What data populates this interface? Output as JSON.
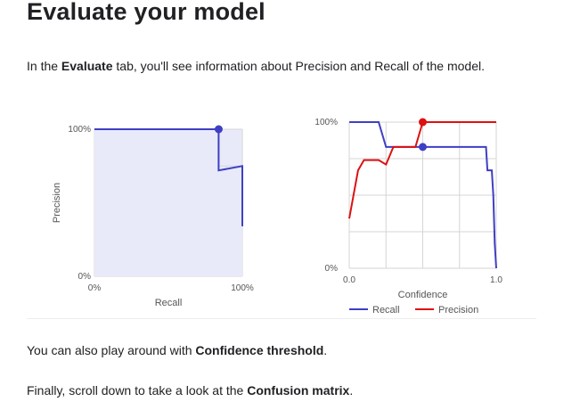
{
  "doc": {
    "title": "Evaluate your model",
    "intro": {
      "before": "In the ",
      "bold": "Evaluate",
      "after": " tab, you'll see information about Precision and Recall of the model."
    },
    "confidence_para": {
      "before": "You can also play around with ",
      "bold": "Confidence threshold",
      "after": "."
    },
    "confusion_para": {
      "before": "Finally, scroll down to take a look at the ",
      "bold": "Confusion matrix",
      "after": "."
    }
  },
  "colors": {
    "recall": "#3f3fc4",
    "precision": "#dd1111",
    "pr_fill": "#e8eaf9",
    "grid": "#d5d5d5"
  },
  "chart_data": [
    {
      "type": "area",
      "xlabel": "Recall",
      "ylabel": "Precision",
      "xlim": [
        0,
        100
      ],
      "ylim": [
        0,
        100
      ],
      "grid": true,
      "x_ticks": [
        "0%",
        "100%"
      ],
      "y_ticks": [
        "0%",
        "100%"
      ],
      "series": [
        {
          "x": [
            0,
            84,
            84,
            100,
            100
          ],
          "y": [
            100,
            100,
            72,
            75,
            34
          ]
        }
      ],
      "highlight": {
        "x": 84,
        "y": 100
      }
    },
    {
      "type": "line",
      "xlabel": "Confidence",
      "xlim": [
        0,
        1
      ],
      "ylim": [
        0,
        100
      ],
      "grid": true,
      "x_ticks": [
        "0.0",
        "1.0"
      ],
      "y_ticks": [
        "0%",
        "100%"
      ],
      "legend": "bottom",
      "series": [
        {
          "name": "Recall",
          "color": "#3f3fc4",
          "x": [
            0,
            0.2,
            0.25,
            0.5,
            0.93,
            0.94,
            0.97,
            0.98,
            0.99,
            1.0
          ],
          "y": [
            100,
            100,
            83,
            83,
            83,
            67,
            67,
            50,
            17,
            0
          ]
        },
        {
          "name": "Precision",
          "color": "#dd1111",
          "x": [
            0,
            0.06,
            0.1,
            0.2,
            0.25,
            0.3,
            0.45,
            0.5,
            0.5,
            1.0
          ],
          "y": [
            34,
            67,
            74,
            74,
            71,
            83,
            83,
            100,
            100,
            100
          ]
        }
      ],
      "highlights": [
        {
          "series": "Recall",
          "x": 0.5,
          "y": 83
        },
        {
          "series": "Precision",
          "x": 0.5,
          "y": 100
        }
      ]
    }
  ]
}
